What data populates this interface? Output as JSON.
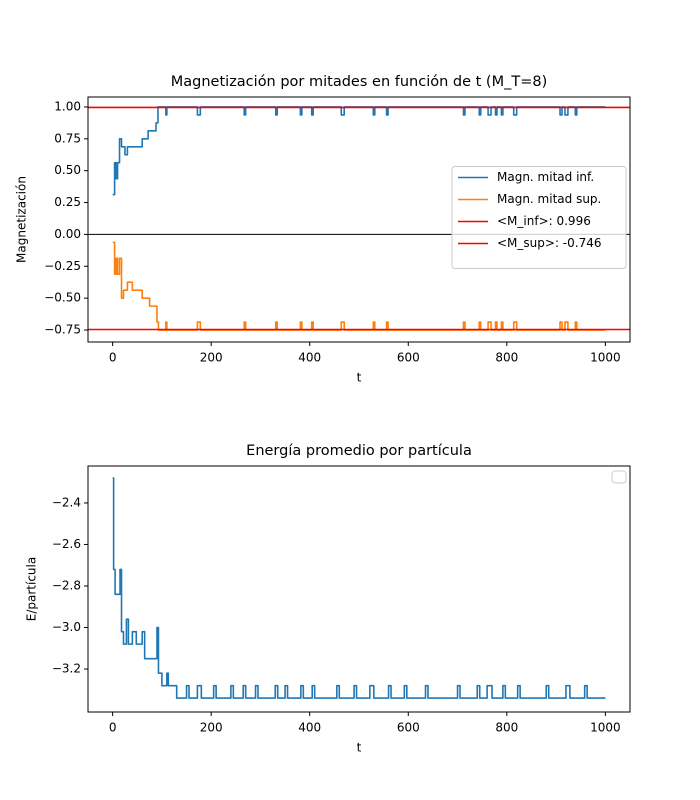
{
  "chart_data": [
    {
      "type": "line",
      "title": "Magnetización por mitades en función de t (M_T=8)",
      "x_label": "t",
      "y_label": "Magnetización",
      "xlim": [
        -50,
        1050
      ],
      "ylim": [
        -0.844,
        1.078
      ],
      "xticks": [
        0,
        200,
        400,
        600,
        800,
        1000
      ],
      "yticks": [
        {
          "value": 1,
          "label": "1.00"
        },
        {
          "value": 0.75,
          "label": "0.75"
        },
        {
          "value": 0.5,
          "label": "0.50"
        },
        {
          "value": 0.25,
          "label": "0.25"
        },
        {
          "value": 0,
          "label": "0.00"
        },
        {
          "value": -0.25,
          "label": "−0.25"
        },
        {
          "value": -0.5,
          "label": "−0.50"
        },
        {
          "value": -0.75,
          "label": "−0.75"
        }
      ],
      "legend": "center right",
      "reference_lines": [
        {
          "value": 0,
          "color": "#000000"
        }
      ],
      "series": [
        {
          "name": "Magn. mitad inf.",
          "color": "#1f77b4",
          "x": [
            0,
            4,
            4,
            7,
            7,
            10,
            10,
            14,
            14,
            18,
            18,
            25,
            25,
            30,
            30,
            60,
            60,
            72,
            72,
            88,
            88,
            92,
            92,
            108,
            108,
            110,
            110,
            172,
            172,
            178,
            178,
            267,
            267,
            270,
            270,
            331,
            331,
            334,
            334,
            381,
            381,
            384,
            384,
            404,
            404,
            407,
            407,
            464,
            464,
            470,
            470,
            529,
            529,
            532,
            532,
            556,
            556,
            559,
            559,
            712,
            712,
            715,
            715,
            744,
            744,
            747,
            747,
            762,
            762,
            768,
            768,
            777,
            777,
            780,
            780,
            789,
            789,
            792,
            792,
            814,
            814,
            820,
            820,
            908,
            908,
            912,
            912,
            918,
            918,
            924,
            924,
            939,
            939,
            942,
            942,
            1000
          ],
          "values": [
            0.3125,
            0.3125,
            0.5625,
            0.5625,
            0.4375,
            0.4375,
            0.5625,
            0.5625,
            0.75,
            0.75,
            0.6875,
            0.6875,
            0.625,
            0.625,
            0.6875,
            0.6875,
            0.75,
            0.75,
            0.8125,
            0.8125,
            0.875,
            0.875,
            1,
            1,
            0.9375,
            0.9375,
            1,
            1,
            0.9375,
            0.9375,
            1,
            1,
            0.9375,
            0.9375,
            1,
            1,
            0.9375,
            0.9375,
            1,
            1,
            0.9375,
            0.9375,
            1,
            1,
            0.9375,
            0.9375,
            1,
            1,
            0.9375,
            0.9375,
            1,
            1,
            0.9375,
            0.9375,
            1,
            1,
            0.9375,
            0.9375,
            1,
            1,
            0.9375,
            0.9375,
            1,
            1,
            0.9375,
            0.9375,
            1,
            1,
            0.9375,
            0.9375,
            1,
            1,
            0.9375,
            0.9375,
            1,
            1,
            0.9375,
            0.9375,
            1,
            1,
            0.9375,
            0.9375,
            1,
            1,
            0.9375,
            0.9375,
            1,
            1,
            0.9375,
            0.9375,
            1,
            1,
            0.9375,
            0.9375,
            1,
            1
          ]
        },
        {
          "name": "Magn. mitad sup.",
          "color": "#ff7f0e",
          "x": [
            0,
            4,
            4,
            7,
            7,
            10,
            10,
            14,
            14,
            18,
            18,
            22,
            22,
            30,
            30,
            40,
            40,
            60,
            60,
            75,
            75,
            90,
            90,
            93,
            93,
            108,
            108,
            110,
            110,
            172,
            172,
            178,
            178,
            267,
            267,
            270,
            270,
            331,
            331,
            334,
            334,
            381,
            381,
            384,
            384,
            404,
            404,
            407,
            407,
            464,
            464,
            470,
            470,
            529,
            529,
            532,
            532,
            556,
            556,
            559,
            559,
            712,
            712,
            715,
            715,
            744,
            744,
            747,
            747,
            762,
            762,
            768,
            768,
            777,
            777,
            780,
            780,
            789,
            789,
            792,
            792,
            814,
            814,
            820,
            820,
            908,
            908,
            912,
            912,
            918,
            918,
            924,
            924,
            939,
            939,
            942,
            942,
            1000
          ],
          "values": [
            -0.0625,
            -0.0625,
            -0.3125,
            -0.3125,
            -0.1875,
            -0.1875,
            -0.3125,
            -0.3125,
            -0.1875,
            -0.1875,
            -0.5,
            -0.5,
            -0.4375,
            -0.4375,
            -0.375,
            -0.375,
            -0.4375,
            -0.4375,
            -0.5,
            -0.5,
            -0.5625,
            -0.5625,
            -0.6875,
            -0.6875,
            -0.75,
            -0.75,
            -0.6875,
            -0.6875,
            -0.75,
            -0.75,
            -0.6875,
            -0.6875,
            -0.75,
            -0.75,
            -0.6875,
            -0.6875,
            -0.75,
            -0.75,
            -0.6875,
            -0.6875,
            -0.75,
            -0.75,
            -0.6875,
            -0.6875,
            -0.75,
            -0.75,
            -0.6875,
            -0.6875,
            -0.75,
            -0.75,
            -0.6875,
            -0.6875,
            -0.75,
            -0.75,
            -0.6875,
            -0.6875,
            -0.75,
            -0.75,
            -0.6875,
            -0.6875,
            -0.75,
            -0.75,
            -0.6875,
            -0.6875,
            -0.75,
            -0.75,
            -0.6875,
            -0.6875,
            -0.75,
            -0.75,
            -0.6875,
            -0.6875,
            -0.75,
            -0.75,
            -0.6875,
            -0.6875,
            -0.75,
            -0.75,
            -0.6875,
            -0.6875,
            -0.75,
            -0.75,
            -0.6875,
            -0.6875,
            -0.75,
            -0.75,
            -0.6875,
            -0.6875,
            -0.75,
            -0.75,
            -0.6875,
            -0.6875,
            -0.75,
            -0.75,
            -0.6875,
            -0.6875,
            -0.75,
            -0.75
          ]
        },
        {
          "name": "<M_inf>: 0.996",
          "color": "#ff0000",
          "hline": 0.996
        },
        {
          "name": "<M_sup>: -0.746",
          "color": "#ff0000",
          "hline": -0.746
        }
      ]
    },
    {
      "type": "line",
      "title": "Energía promedio por partícula",
      "x_label": "t",
      "y_label": "E/partícula",
      "xlim": [
        -50,
        1050
      ],
      "ylim": [
        -3.407,
        -2.222
      ],
      "xticks": [
        0,
        200,
        400,
        600,
        800,
        1000
      ],
      "yticks": [
        {
          "value": -2.4,
          "label": "−2.4"
        },
        {
          "value": -2.6,
          "label": "−2.6"
        },
        {
          "value": -2.8,
          "label": "−2.8"
        },
        {
          "value": -3.0,
          "label": "−3.0"
        },
        {
          "value": -3.2,
          "label": "−3.2"
        }
      ],
      "legend": "upper right",
      "series": [
        {
          "color": "#1f77b4",
          "x": [
            0,
            2,
            2,
            5,
            5,
            15,
            15,
            18,
            18,
            22,
            22,
            28,
            28,
            32,
            32,
            40,
            40,
            48,
            48,
            60,
            60,
            65,
            65,
            90,
            90,
            93,
            93,
            100,
            100,
            110,
            110,
            113,
            113,
            130,
            130,
            150,
            150,
            155,
            155,
            172,
            172,
            180,
            180,
            205,
            205,
            210,
            210,
            240,
            240,
            245,
            245,
            265,
            265,
            270,
            270,
            290,
            290,
            295,
            295,
            330,
            330,
            335,
            335,
            350,
            350,
            355,
            355,
            382,
            382,
            387,
            387,
            405,
            405,
            410,
            410,
            455,
            455,
            460,
            460,
            490,
            490,
            495,
            495,
            522,
            522,
            530,
            530,
            560,
            560,
            565,
            565,
            592,
            592,
            597,
            597,
            635,
            635,
            640,
            640,
            700,
            700,
            705,
            705,
            740,
            740,
            745,
            745,
            760,
            760,
            770,
            770,
            792,
            792,
            797,
            797,
            822,
            822,
            827,
            827,
            880,
            880,
            885,
            885,
            920,
            920,
            928,
            928,
            958,
            958,
            963,
            963,
            1000
          ],
          "values": [
            -2.28,
            -2.28,
            -2.72,
            -2.72,
            -2.84,
            -2.84,
            -2.72,
            -2.72,
            -3.02,
            -3.02,
            -3.08,
            -3.08,
            -2.96,
            -2.96,
            -3.08,
            -3.08,
            -3.02,
            -3.02,
            -3.08,
            -3.08,
            -3.02,
            -3.02,
            -3.15,
            -3.15,
            -3.0,
            -3.0,
            -3.22,
            -3.22,
            -3.28,
            -3.28,
            -3.22,
            -3.22,
            -3.28,
            -3.28,
            -3.34,
            -3.34,
            -3.28,
            -3.28,
            -3.34,
            -3.34,
            -3.28,
            -3.28,
            -3.34,
            -3.34,
            -3.28,
            -3.28,
            -3.34,
            -3.34,
            -3.28,
            -3.28,
            -3.34,
            -3.34,
            -3.28,
            -3.28,
            -3.34,
            -3.34,
            -3.28,
            -3.28,
            -3.34,
            -3.34,
            -3.28,
            -3.28,
            -3.34,
            -3.34,
            -3.28,
            -3.28,
            -3.34,
            -3.34,
            -3.28,
            -3.28,
            -3.34,
            -3.34,
            -3.28,
            -3.28,
            -3.34,
            -3.34,
            -3.28,
            -3.28,
            -3.34,
            -3.34,
            -3.28,
            -3.28,
            -3.34,
            -3.34,
            -3.28,
            -3.28,
            -3.34,
            -3.34,
            -3.28,
            -3.28,
            -3.34,
            -3.34,
            -3.28,
            -3.28,
            -3.34,
            -3.34,
            -3.28,
            -3.28,
            -3.34,
            -3.34,
            -3.28,
            -3.28,
            -3.34,
            -3.34,
            -3.28,
            -3.28,
            -3.34,
            -3.34,
            -3.28,
            -3.28,
            -3.34,
            -3.34,
            -3.28,
            -3.28,
            -3.34,
            -3.34,
            -3.28,
            -3.28,
            -3.34,
            -3.34,
            -3.28,
            -3.28,
            -3.34,
            -3.34,
            -3.28,
            -3.28,
            -3.34,
            -3.34,
            -3.28,
            -3.28,
            -3.34,
            -3.34
          ]
        }
      ]
    }
  ]
}
